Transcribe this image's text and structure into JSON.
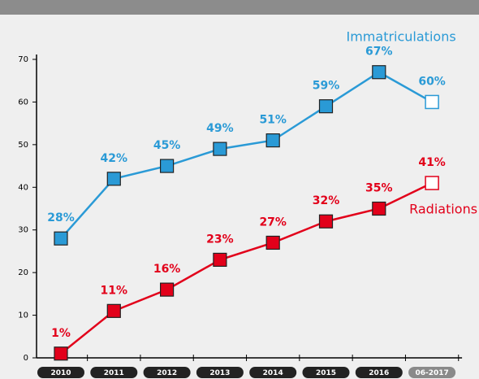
{
  "chart_data": {
    "type": "line",
    "categories": [
      "2010",
      "2011",
      "2012",
      "2013",
      "2014",
      "2015",
      "2016",
      "06-2017"
    ],
    "series": [
      {
        "name": "Immatriculations",
        "color": "#2a9ad6",
        "values": [
          28,
          42,
          45,
          49,
          51,
          59,
          67,
          60
        ],
        "value_labels": [
          "28%",
          "42%",
          "45%",
          "49%",
          "51%",
          "59%",
          "67%",
          "60%"
        ],
        "open_points": [
          7
        ]
      },
      {
        "name": "Radiations",
        "color": "#e2001a",
        "values": [
          1,
          11,
          16,
          23,
          27,
          32,
          35,
          41
        ],
        "value_labels": [
          "1%",
          "11%",
          "16%",
          "23%",
          "27%",
          "32%",
          "35%",
          "41%"
        ],
        "open_points": [
          7
        ]
      }
    ],
    "ylim": [
      0,
      70
    ],
    "yticks": [
      0,
      10,
      20,
      30,
      40,
      50,
      60,
      70
    ],
    "grid": false
  }
}
